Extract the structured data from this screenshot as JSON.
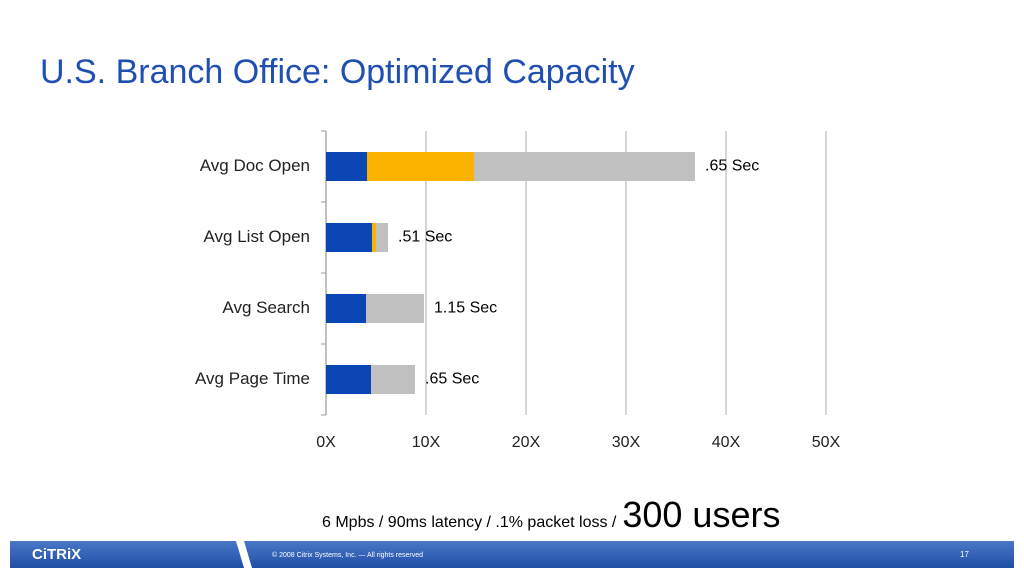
{
  "chart_data": {
    "type": "bar",
    "orientation": "horizontal",
    "stacked": true,
    "title": "U.S. Branch Office: Optimized Capacity",
    "categories": [
      "Avg Doc Open",
      "Avg List Open",
      "Avg Search",
      "Avg Page Time"
    ],
    "series": [
      {
        "color": "#0a46b4",
        "values": [
          4.1,
          4.6,
          4.0,
          4.5
        ]
      },
      {
        "color": "#fbb300",
        "values": [
          10.7,
          0.4,
          0,
          0
        ]
      },
      {
        "color": "#c0c0c0",
        "values": [
          22.1,
          1.2,
          5.8,
          4.4
        ]
      }
    ],
    "annotations": [
      ".65 Sec",
      ".51 Sec",
      "1.15 Sec",
      ".65 Sec"
    ],
    "xlim": [
      0,
      50
    ],
    "xticks": [
      {
        "value": 0,
        "label": "0X"
      },
      {
        "value": 10,
        "label": "10X"
      },
      {
        "value": 20,
        "label": "20X"
      },
      {
        "value": 30,
        "label": "30X"
      },
      {
        "value": 40,
        "label": "40X"
      },
      {
        "value": 50,
        "label": "50X"
      }
    ],
    "grid": true,
    "note": "6 Mpbs / 90ms latency / .1% packet loss /",
    "note_emphasis": "300 users"
  },
  "footer": {
    "logo": "CiTRiX",
    "copyright": "© 2008 Citrix Systems, Inc. — All rights reserved",
    "page": "17"
  }
}
